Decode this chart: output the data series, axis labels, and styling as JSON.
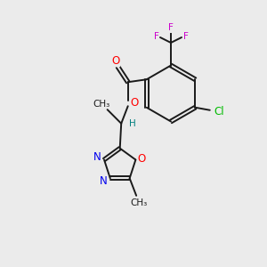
{
  "background_color": "#ebebeb",
  "bond_color": "#1a1a1a",
  "atom_colors": {
    "O": "#ff0000",
    "N": "#0000ee",
    "Cl": "#00bb00",
    "F": "#cc00cc",
    "H": "#008080",
    "C": "#1a1a1a"
  },
  "bond_lw": 1.4,
  "font_size_atom": 8.5,
  "font_size_small": 7.5
}
